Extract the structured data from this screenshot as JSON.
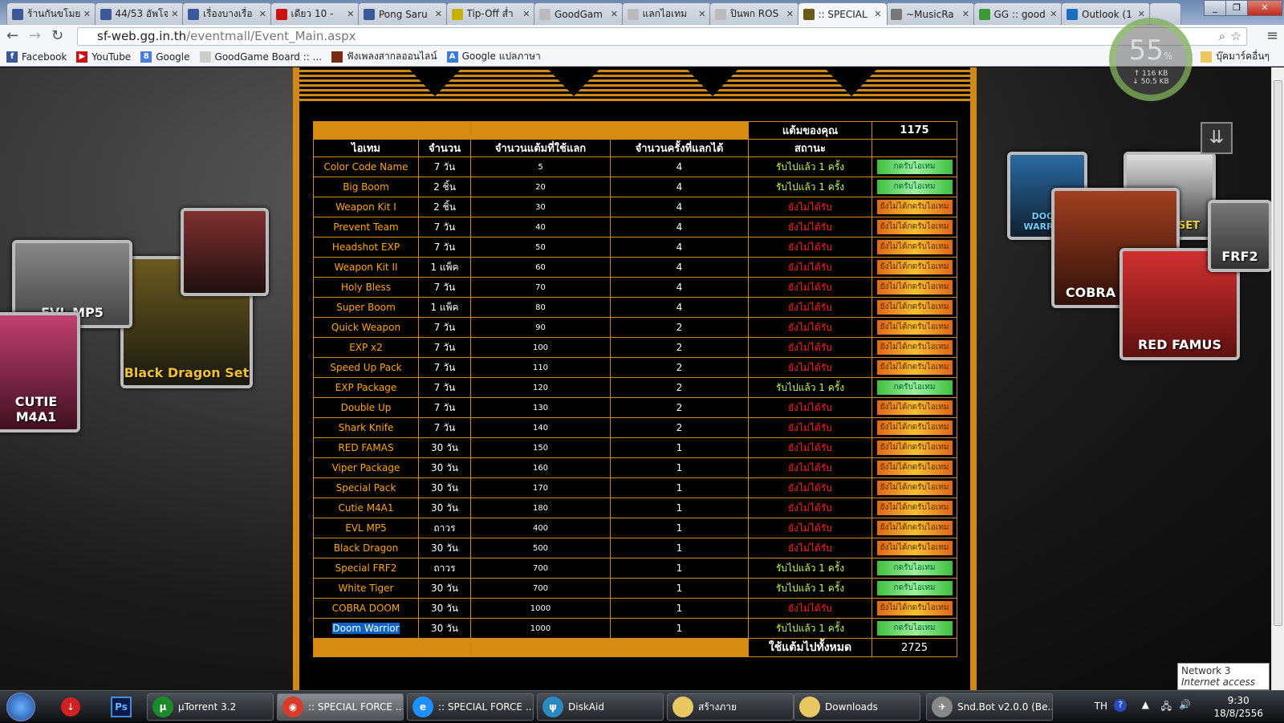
{
  "browser": {
    "tabs": [
      {
        "title": "ร้านกันขโมย",
        "icon": "facebook-icon",
        "color": "#3b5998"
      },
      {
        "title": "44/53 อัพโจ",
        "icon": "facebook-icon",
        "color": "#3b5998"
      },
      {
        "title": "เรื่องบางเรื่อ",
        "icon": "facebook-icon",
        "color": "#3b5998"
      },
      {
        "title": "เดียว 10 - ",
        "icon": "youtube-icon",
        "color": "#cc1111"
      },
      {
        "title": "Pong Saru",
        "icon": "facebook-icon",
        "color": "#3b5998"
      },
      {
        "title": "Tip-Off ส่ำ",
        "icon": "sf-icon",
        "color": "#c8b000"
      },
      {
        "title": "GoodGam",
        "icon": "page-icon",
        "color": "#bbbbbb"
      },
      {
        "title": "แลกไอเทม",
        "icon": "page-icon",
        "color": "#bbbbbb"
      },
      {
        "title": "ปินพก ROS",
        "icon": "page-icon",
        "color": "#bbbbbb"
      },
      {
        "title": ":: SPECIAL",
        "icon": "special-force-icon",
        "color": "#6b5a1a"
      },
      {
        "title": "~MusicRa",
        "icon": "music-icon",
        "color": "#777777"
      },
      {
        "title": "GG :: good",
        "icon": "gg-icon",
        "color": "#3a9a3a"
      },
      {
        "title": "Outlook (1",
        "icon": "outlook-icon",
        "color": "#1b6ec2"
      }
    ],
    "active_tab": 9,
    "url_host": "sf-web.gg.in.th",
    "url_path": "/eventmall/Event_Main.aspx",
    "bookmarks": [
      {
        "label": "Facebook",
        "icon": "facebook-icon",
        "color": "#3b5998",
        "glyph": "f"
      },
      {
        "label": "YouTube",
        "icon": "youtube-icon",
        "color": "#cc1111",
        "glyph": "▶"
      },
      {
        "label": "Google",
        "icon": "google-icon",
        "color": "#4a7be0",
        "glyph": "8"
      },
      {
        "label": "GoodGame Board :: ...",
        "icon": "page-icon",
        "color": "#cccccc",
        "glyph": ""
      },
      {
        "label": "ฟังเพลงสากลออนไลน์",
        "icon": "music-icon",
        "color": "#7a2a10",
        "glyph": ""
      },
      {
        "label": "Google แปลภาษา",
        "icon": "translate-icon",
        "color": "#3a7bd5",
        "glyph": "A"
      }
    ],
    "other_bookmarks": "บุ๊คมาร์คอื่นๆ"
  },
  "meter": {
    "percent": "55",
    "unit": "%",
    "up": "116 KB",
    "down": "50.5 KB"
  },
  "artwork": {
    "left": [
      "EVL MP5",
      "Black Dragon Set",
      "CUTIE M4A1"
    ],
    "right": [
      "DOOM WARRIOR",
      "COBRA DOOM",
      "RED FAMUS",
      "FRF2",
      "TIGER SET"
    ]
  },
  "table": {
    "points_label": "แต้มของคุณ",
    "points_value": "1175",
    "headers": [
      "ไอเทม",
      "จำนวน",
      "จำนวนแต้มที่ใช้แลก",
      "จำนวนครั้งที่แลกได้",
      "สถานะ"
    ],
    "total_label": "ใช้แต้มไปทั้งหมด",
    "total_value": "2725",
    "status_claimed": "รับไปแล้ว 1 ครั้ง",
    "status_unclaimed": "ยังไม่ได้รับ",
    "btn_claimed": "กดรับไอเทม",
    "btn_unclaimed": "ยังไม่ได้กดรับไอเทม",
    "rows": [
      {
        "item": "Color Code Name",
        "qty": "7 วัน",
        "points": "5",
        "times": "4",
        "claimed": true
      },
      {
        "item": "Big Boom",
        "qty": "2 ชิ้น",
        "points": "20",
        "times": "4",
        "claimed": true
      },
      {
        "item": "Weapon Kit I",
        "qty": "2 ชิ้น",
        "points": "30",
        "times": "4",
        "claimed": false
      },
      {
        "item": "Prevent Team",
        "qty": "7 วัน",
        "points": "40",
        "times": "4",
        "claimed": false
      },
      {
        "item": "Headshot EXP",
        "qty": "7 วัน",
        "points": "50",
        "times": "4",
        "claimed": false
      },
      {
        "item": "Weapon Kit II",
        "qty": "1 แพ็ค",
        "points": "60",
        "times": "4",
        "claimed": false
      },
      {
        "item": "Holy Bless",
        "qty": "7 วัน",
        "points": "70",
        "times": "4",
        "claimed": false
      },
      {
        "item": "Super Boom",
        "qty": "1 แพ็ค",
        "points": "80",
        "times": "4",
        "claimed": false
      },
      {
        "item": "Quick Weapon",
        "qty": "7 วัน",
        "points": "90",
        "times": "2",
        "claimed": false
      },
      {
        "item": "EXP x2",
        "qty": "7 วัน",
        "points": "100",
        "times": "2",
        "claimed": false
      },
      {
        "item": "Speed Up Pack",
        "qty": "7 วัน",
        "points": "110",
        "times": "2",
        "claimed": false
      },
      {
        "item": "EXP Package",
        "qty": "7 วัน",
        "points": "120",
        "times": "2",
        "claimed": true
      },
      {
        "item": "Double Up",
        "qty": "7 วัน",
        "points": "130",
        "times": "2",
        "claimed": false
      },
      {
        "item": "Shark Knife",
        "qty": "7 วัน",
        "points": "140",
        "times": "2",
        "claimed": false
      },
      {
        "item": "RED FAMAS",
        "qty": "30 วัน",
        "points": "150",
        "times": "1",
        "claimed": false
      },
      {
        "item": "Viper Package",
        "qty": "30 วัน",
        "points": "160",
        "times": "1",
        "claimed": false
      },
      {
        "item": "Special Pack",
        "qty": "30 วัน",
        "points": "170",
        "times": "1",
        "claimed": false
      },
      {
        "item": "Cutie M4A1",
        "qty": "30 วัน",
        "points": "180",
        "times": "1",
        "claimed": false
      },
      {
        "item": "EVL MP5",
        "qty": "ถาวร",
        "points": "400",
        "times": "1",
        "claimed": false
      },
      {
        "item": "Black Dragon",
        "qty": "30 วัน",
        "points": "500",
        "times": "1",
        "claimed": false
      },
      {
        "item": "Special FRF2",
        "qty": "ถาวร",
        "points": "700",
        "times": "1",
        "claimed": true
      },
      {
        "item": "White Tiger",
        "qty": "30 วัน",
        "points": "700",
        "times": "1",
        "claimed": true
      },
      {
        "item": "COBRA DOOM",
        "qty": "30 วัน",
        "points": "1000",
        "times": "1",
        "claimed": false
      },
      {
        "item": "Doom Warrior",
        "qty": "30 วัน",
        "points": "1000",
        "times": "1",
        "claimed": true,
        "selected": true
      }
    ]
  },
  "taskbar": {
    "items": [
      {
        "label": "µTorrent 3.2",
        "glyph": "µ",
        "color": "#1a8a2a"
      },
      {
        "label": ":: SPECIAL FORCE ...",
        "glyph": "◉",
        "color": "#d93a2a",
        "active": true
      },
      {
        "label": ":: SPECIAL FORCE ...",
        "glyph": "e",
        "color": "#1e90ff"
      },
      {
        "label": "DiskAid",
        "glyph": "ψ",
        "color": "#2a8ac0"
      },
      {
        "label": "สร้างภาย",
        "glyph": "",
        "color": "#e8c860"
      },
      {
        "label": "Downloads",
        "glyph": "",
        "color": "#e8c860"
      },
      {
        "label": "Snd.Bot v2.0.0 (Be...",
        "glyph": "✈",
        "color": "#888888"
      }
    ],
    "lang": "TH",
    "time": "9:30",
    "date": "18/8/2556",
    "tooltip_title": "Network 3",
    "tooltip_sub": "Internet access"
  }
}
